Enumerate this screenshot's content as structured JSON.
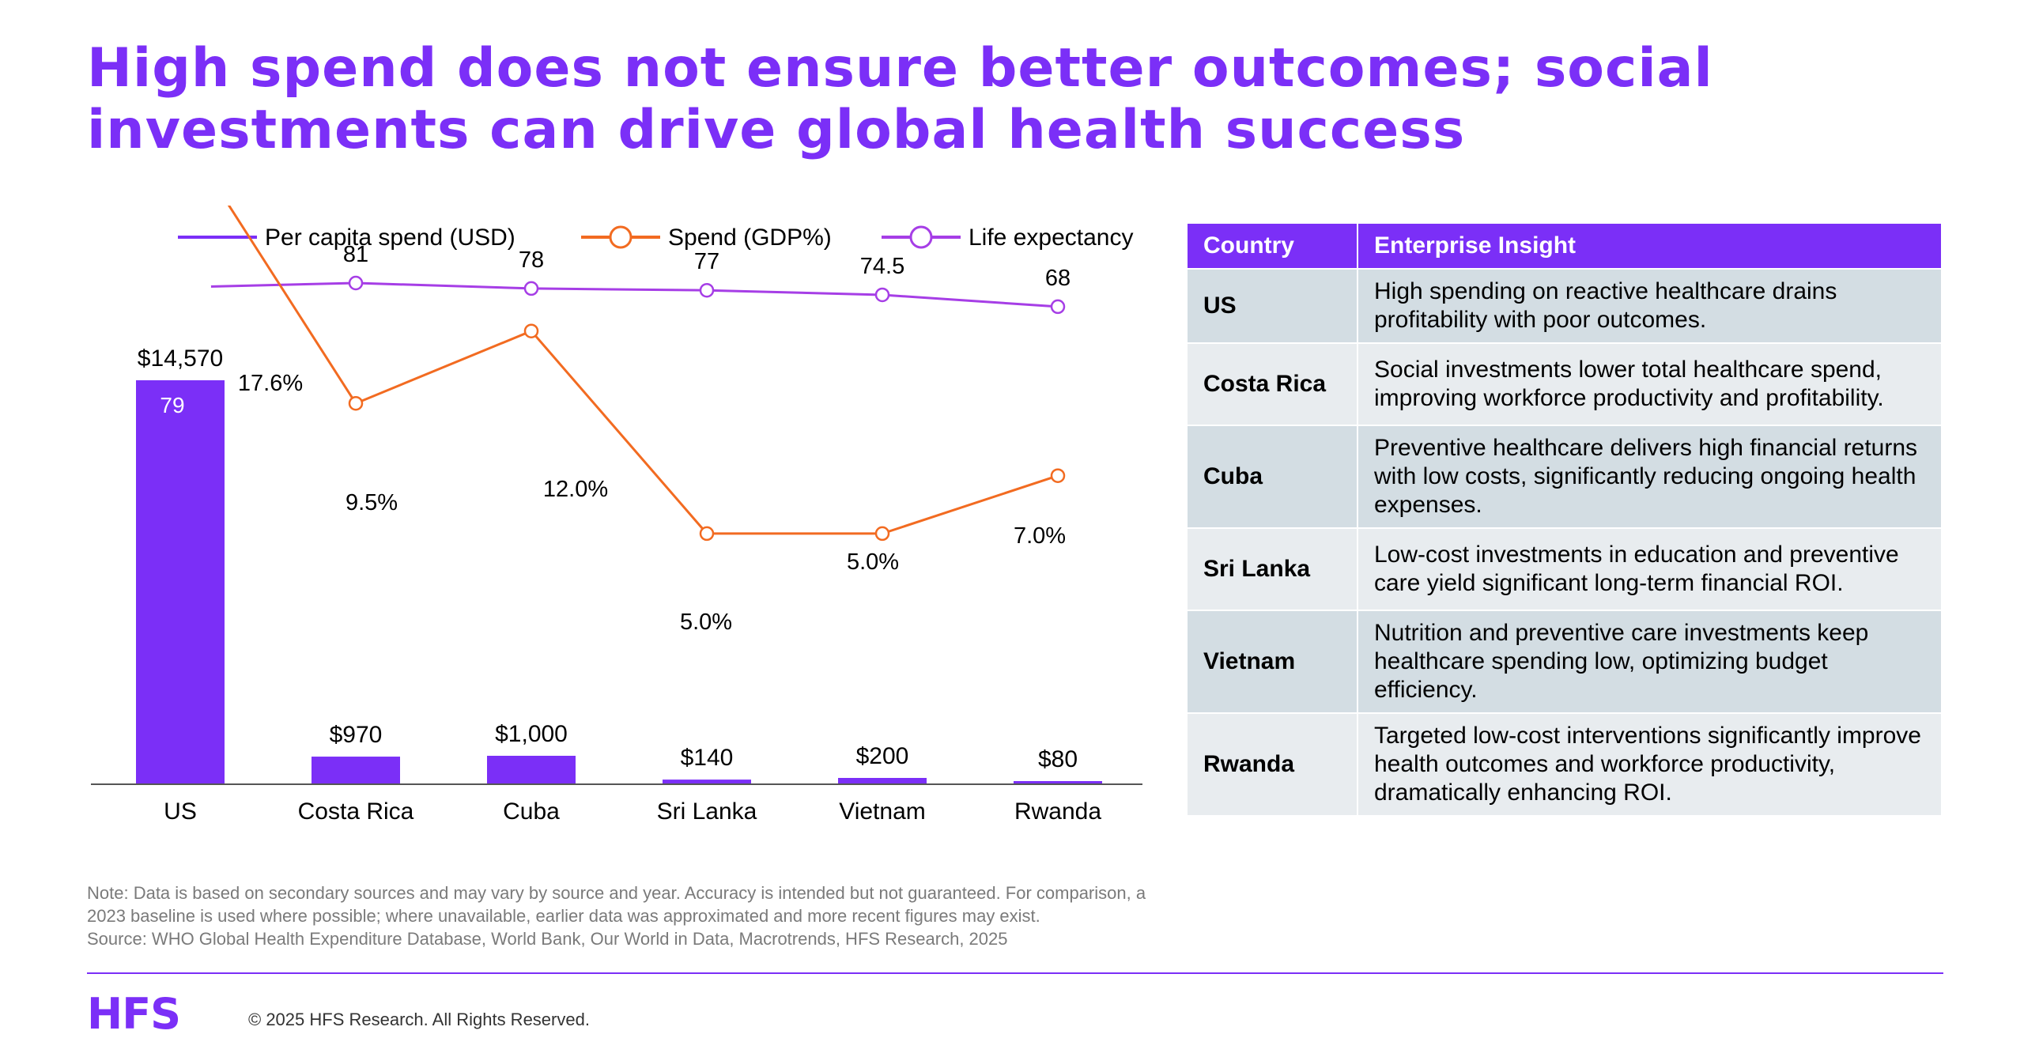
{
  "title": "High spend does not ensure better outcomes; social investments can drive global health success",
  "chart_data": {
    "type": "bar",
    "categories": [
      "US",
      "Costa Rica",
      "Cuba",
      "Sri Lanka",
      "Vietnam",
      "Rwanda"
    ],
    "series": [
      {
        "name": "Per capita spend (USD)",
        "kind": "bar",
        "values": [
          14570,
          970,
          1000,
          140,
          200,
          80
        ],
        "labels": [
          "$14,570",
          "$970",
          "$1,000",
          "$140",
          "$200",
          "$80"
        ]
      },
      {
        "name": "Spend (GDP%)",
        "kind": "line",
        "values": [
          17.6,
          9.5,
          12.0,
          5.0,
          5.0,
          7.0
        ],
        "labels": [
          "17.6%",
          "9.5%",
          "12.0%",
          "5.0%",
          "5.0%",
          "7.0%"
        ]
      },
      {
        "name": "Life expectancy",
        "kind": "line",
        "values": [
          79,
          81,
          78,
          77,
          74.5,
          68
        ],
        "labels": [
          "79",
          "81",
          "78",
          "77",
          "74.5",
          "68"
        ]
      }
    ],
    "legend": "top",
    "grid": false,
    "colors": {
      "bar": "#7b2ff7",
      "gdp": "#f26b21",
      "life": "#a63ee6"
    }
  },
  "table": {
    "headers": [
      "Country",
      "Enterprise Insight"
    ],
    "rows": [
      {
        "country": "US",
        "insight": "High spending on reactive healthcare drains profitability with poor outcomes."
      },
      {
        "country": "Costa Rica",
        "insight": "Social investments lower total healthcare spend, improving workforce productivity and profitability."
      },
      {
        "country": "Cuba",
        "insight": "Preventive healthcare delivers high financial returns with low costs, significantly reducing ongoing health expenses."
      },
      {
        "country": "Sri Lanka",
        "insight": "Low-cost investments in education and preventive care yield significant long-term financial ROI."
      },
      {
        "country": "Vietnam",
        "insight": "Nutrition and preventive care investments keep healthcare spending low, optimizing budget efficiency."
      },
      {
        "country": "Rwanda",
        "insight": "Targeted low-cost interventions significantly improve health outcomes and workforce productivity, dramatically enhancing ROI."
      }
    ]
  },
  "note": {
    "line1": "Note: Data is based on secondary sources and may vary by source and year. Accuracy is intended but not guaranteed. For comparison, a",
    "line2": "2023 baseline is used where possible; where unavailable, earlier data was approximated and more recent figures may exist.",
    "source": "Source: WHO Global Health Expenditure Database, World Bank, Our World in Data, Macrotrends, HFS Research, 2025"
  },
  "footer": {
    "logo": "HFS",
    "copyright": "© 2025 HFS Research. All Rights Reserved."
  }
}
